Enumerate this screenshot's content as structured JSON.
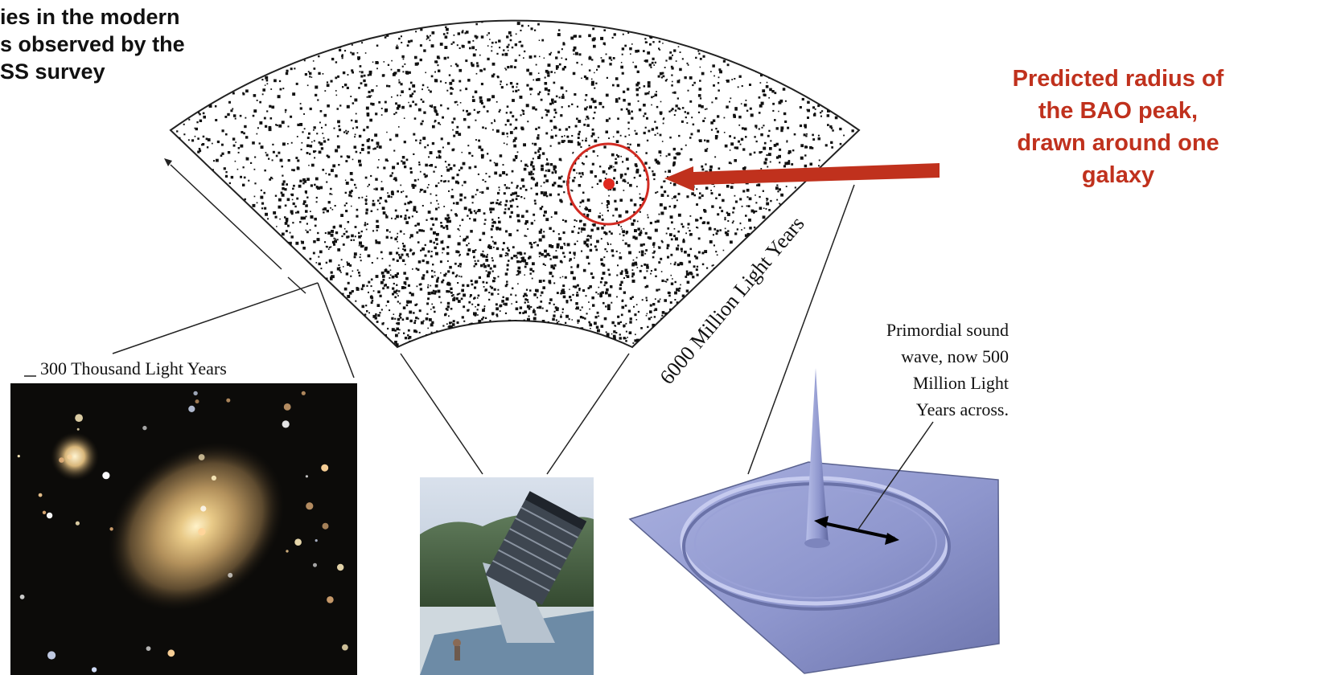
{
  "title": {
    "lines": [
      "ies in the modern",
      "s observed by the",
      "SS survey"
    ]
  },
  "callout": {
    "lines": [
      "Predicted radius of",
      "the BAO peak,",
      "drawn around one",
      "galaxy"
    ],
    "color": "#c0311d"
  },
  "labels": {
    "galaxy_scale": "300 Thousand Light Years",
    "survey_scale": "6000 Million Light Years",
    "sound_wave": [
      "Primordial sound",
      "wave, now 500",
      "Million Light",
      "Years across."
    ]
  },
  "images": {
    "galaxy_photo": "elliptical-galaxy-photo",
    "telescope_photo": "sloan-telescope-photo",
    "bao_surface": "bao-density-surface"
  },
  "colors": {
    "accent": "#c0311d",
    "surface": "#8f97cf",
    "ink": "#111111"
  }
}
